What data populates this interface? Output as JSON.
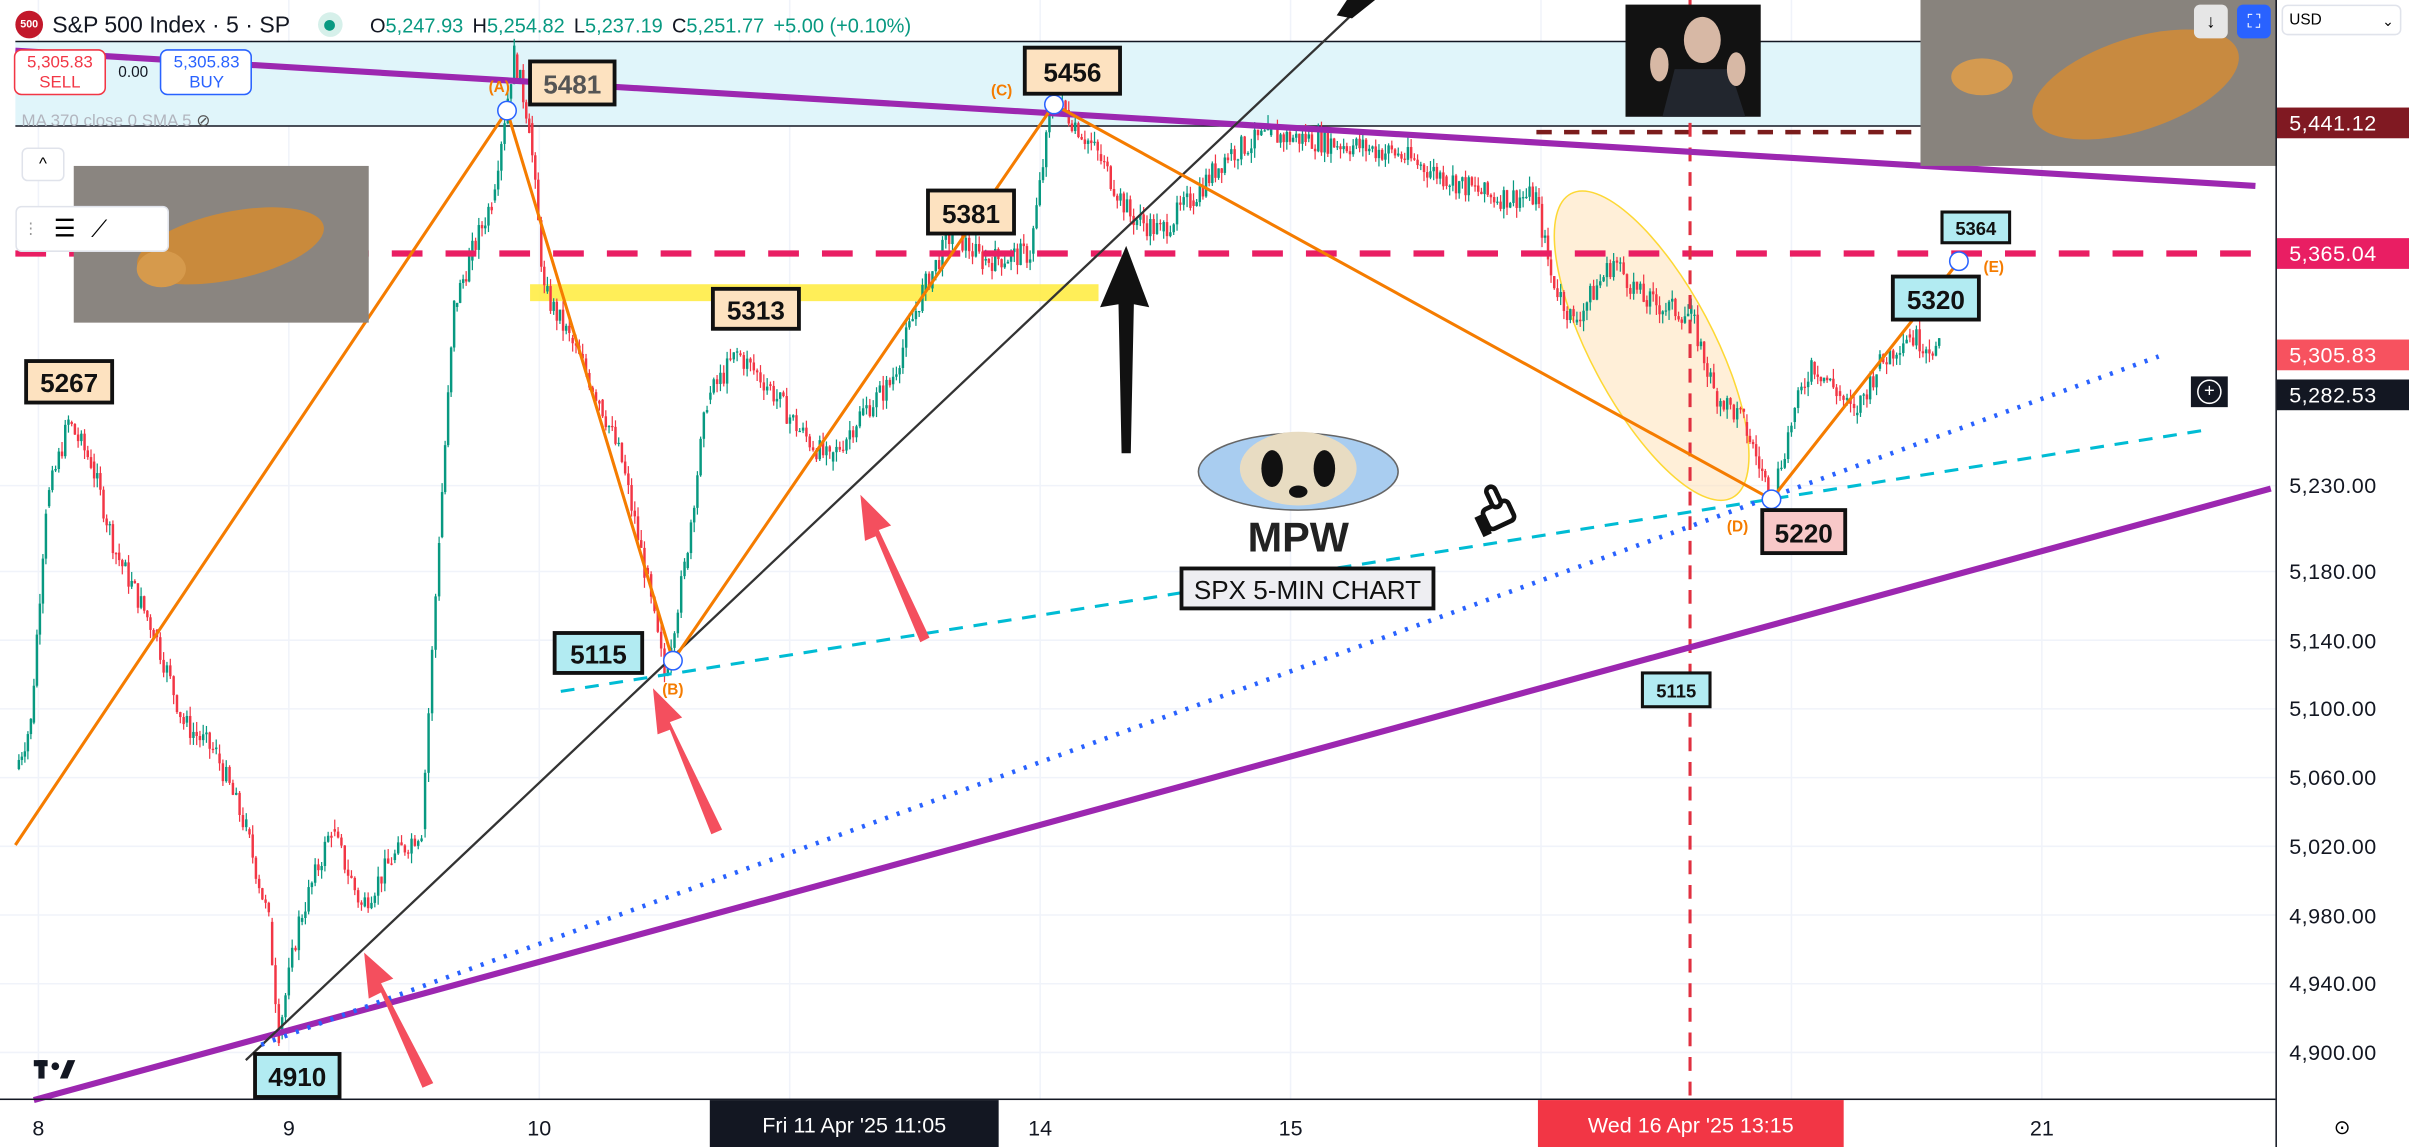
{
  "header": {
    "logo_text": "500",
    "symbol": "S&P 500 Index · 5 · SP",
    "open_label": "O",
    "open": "5,247.93",
    "high_label": "H",
    "high": "5,254.82",
    "low_label": "L",
    "low": "5,237.19",
    "close_label": "C",
    "close": "5,251.77",
    "change": "+5.00 (+0.10%)"
  },
  "trade": {
    "sell_price": "5,305.83",
    "sell_label": "SELL",
    "spread": "0.00",
    "buy_price": "5,305.83",
    "buy_label": "BUY"
  },
  "indicator": {
    "label": "MA 370 close 0 SMA 5"
  },
  "currency": "USD",
  "price_axis": {
    "ticks": [
      "5,230.00",
      "5,180.00",
      "5,140.00",
      "5,100.00",
      "5,060.00",
      "5,020.00",
      "4,980.00",
      "4,940.00",
      "4,900.00"
    ],
    "tick_values": [
      5230,
      5180,
      5140,
      5100,
      5060,
      5020,
      4980,
      4940,
      4900
    ],
    "badges": [
      {
        "text": "5,441.12",
        "value": 5441.12,
        "color": "#801922"
      },
      {
        "text": "5,365.04",
        "value": 5365.04,
        "color": "#e91e63"
      },
      {
        "text": "5,305.83",
        "value": 5305.83,
        "color": "#f7525f"
      },
      {
        "text": "5,282.53",
        "value": 5282.53,
        "color": "#131722"
      }
    ]
  },
  "time_axis": {
    "labels": [
      "8",
      "9",
      "10",
      "14",
      "15",
      "21"
    ],
    "label_days": [
      8,
      9,
      10,
      14,
      15,
      21
    ],
    "crosshair_time": "Fri 11 Apr '25   11:05",
    "event_time": "Wed 16 Apr '25   13:15"
  },
  "annotations": {
    "peak_a": "5481",
    "peak_c": "5456",
    "level_5381": "5381",
    "level_5313": "5313",
    "level_5267": "5267",
    "low_b": "5115",
    "low_start": "4910",
    "low_d": "5220",
    "level_5320": "5320",
    "target_5364": "5364",
    "level_5115_b": "5115",
    "wave_a": "(A)",
    "wave_b": "(B)",
    "wave_c": "(C)",
    "wave_d": "(D)",
    "wave_e": "(E)",
    "brand": "MPW",
    "chart_caption": "SPX 5-MIN CHART"
  },
  "colors": {
    "up": "#089981",
    "down": "#f23645",
    "trend": "#9c27b0",
    "wave": "#f57c00",
    "resistance": "#e91e63"
  },
  "chart_data": {
    "type": "candlestick",
    "title": "S&P 500 Index · 5 · SP",
    "timeframe": "5 min",
    "ylim": [
      4880,
      5500
    ],
    "price_path": [
      [
        7.91,
        5065
      ],
      [
        7.97,
        5092
      ],
      [
        8.03,
        5218
      ],
      [
        8.12,
        5267
      ],
      [
        8.21,
        5244
      ],
      [
        8.31,
        5191
      ],
      [
        8.46,
        5146
      ],
      [
        8.58,
        5092
      ],
      [
        8.71,
        5074
      ],
      [
        8.83,
        5030
      ],
      [
        8.92,
        4976
      ],
      [
        8.96,
        4912
      ],
      [
        9.04,
        4976
      ],
      [
        9.17,
        5030
      ],
      [
        9.29,
        4985
      ],
      [
        9.41,
        5012
      ],
      [
        9.53,
        5030
      ],
      [
        9.6,
        5200
      ],
      [
        9.66,
        5334
      ],
      [
        9.72,
        5361
      ],
      [
        9.81,
        5396
      ],
      [
        9.9,
        5481
      ],
      [
        9.96,
        5441
      ],
      [
        10.02,
        5343
      ],
      [
        10.12,
        5316
      ],
      [
        10.24,
        5280
      ],
      [
        10.33,
        5244
      ],
      [
        10.42,
        5182
      ],
      [
        10.5,
        5120
      ],
      [
        10.58,
        5182
      ],
      [
        10.67,
        5280
      ],
      [
        10.79,
        5307
      ],
      [
        10.91,
        5289
      ],
      [
        11.04,
        5262
      ],
      [
        11.16,
        5244
      ],
      [
        11.28,
        5271
      ],
      [
        11.4,
        5289
      ],
      [
        11.53,
        5343
      ],
      [
        11.65,
        5378
      ],
      [
        11.77,
        5361
      ],
      [
        11.96,
        5365
      ],
      [
        14.05,
        5456
      ],
      [
        14.14,
        5441
      ],
      [
        14.23,
        5423
      ],
      [
        14.36,
        5387
      ],
      [
        14.48,
        5378
      ],
      [
        14.6,
        5396
      ],
      [
        14.75,
        5423
      ],
      [
        14.91,
        5434
      ],
      [
        15.06,
        5432
      ],
      [
        15.25,
        5428
      ],
      [
        15.43,
        5423
      ],
      [
        15.61,
        5410
      ],
      [
        15.8,
        5398
      ],
      [
        15.98,
        5398
      ],
      [
        16.04,
        5352
      ],
      [
        16.13,
        5325
      ],
      [
        16.29,
        5361
      ],
      [
        16.41,
        5338
      ],
      [
        16.6,
        5329
      ],
      [
        16.69,
        5285
      ],
      [
        16.81,
        5267
      ],
      [
        16.92,
        5222
      ],
      [
        17.0,
        5267
      ],
      [
        17.08,
        5302
      ],
      [
        17.18,
        5285
      ],
      [
        17.25,
        5271
      ],
      [
        17.34,
        5298
      ],
      [
        17.46,
        5318
      ],
      [
        17.59,
        5309
      ]
    ],
    "trading_days": [
      8,
      9,
      10,
      11,
      14,
      15,
      16,
      17,
      21
    ],
    "grid": true
  }
}
